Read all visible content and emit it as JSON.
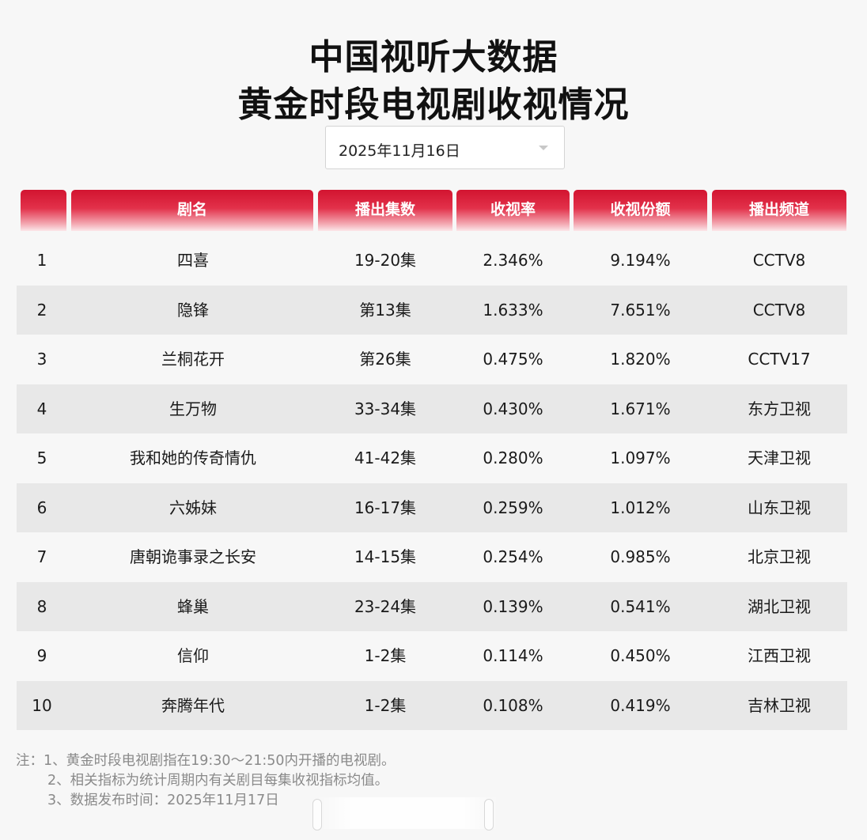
{
  "title": {
    "line1": "中国视听大数据",
    "line2": "黄金时段电视剧收视情况"
  },
  "date_select": {
    "value": "2025年11月16日"
  },
  "table": {
    "headers": {
      "rank": "",
      "name": "剧名",
      "episodes": "播出集数",
      "rating": "收视率",
      "share": "收视份额",
      "channel": "播出频道"
    },
    "rows": [
      {
        "rank": "1",
        "name": "四喜",
        "episodes": "19-20集",
        "rating": "2.346%",
        "share": "9.194%",
        "channel": "CCTV8"
      },
      {
        "rank": "2",
        "name": "隐锋",
        "episodes": "第13集",
        "rating": "1.633%",
        "share": "7.651%",
        "channel": "CCTV8"
      },
      {
        "rank": "3",
        "name": "兰桐花开",
        "episodes": "第26集",
        "rating": "0.475%",
        "share": "1.820%",
        "channel": "CCTV17"
      },
      {
        "rank": "4",
        "name": "生万物",
        "episodes": "33-34集",
        "rating": "0.430%",
        "share": "1.671%",
        "channel": "东方卫视"
      },
      {
        "rank": "5",
        "name": "我和她的传奇情仇",
        "episodes": "41-42集",
        "rating": "0.280%",
        "share": "1.097%",
        "channel": "天津卫视"
      },
      {
        "rank": "6",
        "name": "六姊妹",
        "episodes": "16-17集",
        "rating": "0.259%",
        "share": "1.012%",
        "channel": "山东卫视"
      },
      {
        "rank": "7",
        "name": "唐朝诡事录之长安",
        "episodes": "14-15集",
        "rating": "0.254%",
        "share": "0.985%",
        "channel": "北京卫视"
      },
      {
        "rank": "8",
        "name": "蜂巢",
        "episodes": "23-24集",
        "rating": "0.139%",
        "share": "0.541%",
        "channel": "湖北卫视"
      },
      {
        "rank": "9",
        "name": "信仰",
        "episodes": "1-2集",
        "rating": "0.114%",
        "share": "0.450%",
        "channel": "江西卫视"
      },
      {
        "rank": "10",
        "name": "奔腾年代",
        "episodes": "1-2集",
        "rating": "0.108%",
        "share": "0.419%",
        "channel": "吉林卫视"
      }
    ]
  },
  "notes": {
    "line1": "注：1、黄金时段电视剧指在19:30～21:50内开播的电视剧。",
    "line2": "2、相关指标为统计周期内有关剧目每集收视指标均值。",
    "line3": "3、数据发布时间：2025年11月17日"
  },
  "colors": {
    "header_red": "#d21430",
    "row_alt": "#e8e8e8",
    "background": "#f7f7f7"
  }
}
